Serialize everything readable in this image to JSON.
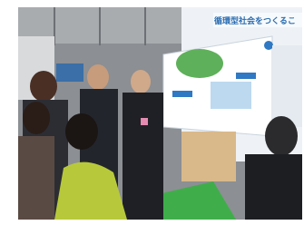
{
  "photo": {
    "sign_text": "循環型社会をつくるこ"
  }
}
